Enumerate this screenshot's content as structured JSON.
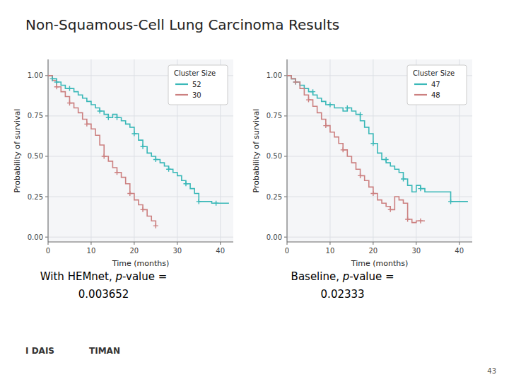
{
  "chart_data": [
    {
      "type": "line",
      "title": "Non-Squamous-Cell Lung Carcinoma Results",
      "x_label": "Time (months)",
      "y_label": "Probability of survival",
      "xlim": [
        0,
        43
      ],
      "ylim": [
        -0.03,
        1.1
      ],
      "xticks": [
        0,
        10,
        20,
        30,
        40
      ],
      "yticks": [
        {
          "value": 0.0,
          "label": "0.00"
        },
        {
          "value": 0.25,
          "label": "0.25"
        },
        {
          "value": 0.5,
          "label": "0.50"
        },
        {
          "value": 0.75,
          "label": "0.75"
        },
        {
          "value": 1.0,
          "label": "1.00"
        }
      ],
      "grid": true,
      "legend": "upper right",
      "legend_title": "Cluster Size",
      "series": [
        {
          "name": "52",
          "type": "line",
          "line_style": "step",
          "color": "#3ab8b8",
          "x": [
            0,
            1,
            2,
            3,
            4,
            5,
            6,
            7,
            8,
            9,
            10,
            11,
            12,
            13,
            14,
            15,
            16,
            17,
            18,
            19,
            20,
            21,
            22,
            23,
            24,
            25,
            26,
            27,
            28,
            29,
            30,
            31,
            32,
            33,
            34,
            35,
            38,
            39,
            40,
            41,
            42
          ],
          "values": [
            1.0,
            0.98,
            0.96,
            0.94,
            0.92,
            0.92,
            0.9,
            0.88,
            0.86,
            0.84,
            0.82,
            0.8,
            0.78,
            0.76,
            0.74,
            0.76,
            0.74,
            0.72,
            0.7,
            0.68,
            0.64,
            0.6,
            0.56,
            0.52,
            0.5,
            0.48,
            0.46,
            0.44,
            0.42,
            0.4,
            0.38,
            0.35,
            0.33,
            0.3,
            0.27,
            0.22,
            0.21,
            0.21,
            0.21,
            0.21,
            0.21
          ]
        },
        {
          "name": "30",
          "type": "line",
          "line_style": "step",
          "color": "#cc8080",
          "x": [
            0,
            1,
            2,
            3,
            4,
            5,
            6,
            7,
            8,
            9,
            10,
            11,
            12,
            13,
            14,
            15,
            16,
            17,
            18,
            19,
            20,
            21,
            22,
            23,
            24,
            25
          ],
          "values": [
            1.0,
            0.97,
            0.93,
            0.9,
            0.87,
            0.83,
            0.8,
            0.77,
            0.73,
            0.7,
            0.67,
            0.63,
            0.57,
            0.5,
            0.47,
            0.43,
            0.4,
            0.37,
            0.33,
            0.27,
            0.23,
            0.2,
            0.17,
            0.13,
            0.1,
            0.07
          ]
        },
        {
          "type": "scatter",
          "marker": "plus",
          "color": "#3ab8b8",
          "x": [
            1,
            2,
            5,
            12,
            14,
            16,
            20,
            22,
            25,
            28,
            32,
            35,
            39
          ],
          "values": [
            0.98,
            0.96,
            0.92,
            0.78,
            0.74,
            0.74,
            0.64,
            0.56,
            0.48,
            0.42,
            0.33,
            0.22,
            0.21
          ]
        },
        {
          "type": "scatter",
          "marker": "plus",
          "color": "#cc8080",
          "x": [
            2,
            5,
            9,
            13,
            16,
            19,
            22,
            25
          ],
          "values": [
            0.93,
            0.83,
            0.7,
            0.5,
            0.4,
            0.27,
            0.17,
            0.07
          ]
        }
      ],
      "annotations": [
        "With HEMnet, ",
        "p",
        "-value =",
        "0.003652"
      ]
    },
    {
      "type": "line",
      "x_label": "Time (months)",
      "y_label": "Probability of survival",
      "xlim": [
        0,
        43
      ],
      "ylim": [
        -0.03,
        1.1
      ],
      "xticks": [
        0,
        10,
        20,
        30,
        40
      ],
      "yticks": [
        {
          "value": 0.0,
          "label": "0.00"
        },
        {
          "value": 0.25,
          "label": "0.25"
        },
        {
          "value": 0.5,
          "label": "0.50"
        },
        {
          "value": 0.75,
          "label": "0.75"
        },
        {
          "value": 1.0,
          "label": "1.00"
        }
      ],
      "grid": true,
      "legend": "upper right",
      "legend_title": "Cluster Size",
      "series": [
        {
          "name": "47",
          "type": "line",
          "line_style": "step",
          "color": "#3ab8b8",
          "x": [
            0,
            1,
            2,
            3,
            4,
            5,
            6,
            7,
            8,
            9,
            10,
            11,
            12,
            13,
            14,
            15,
            16,
            17,
            18,
            19,
            20,
            21,
            22,
            23,
            24,
            25,
            26,
            27,
            28,
            29,
            30,
            31,
            32,
            38,
            39,
            40,
            41,
            42
          ],
          "values": [
            1.0,
            0.98,
            0.96,
            0.94,
            0.92,
            0.9,
            0.88,
            0.86,
            0.84,
            0.82,
            0.82,
            0.8,
            0.8,
            0.78,
            0.8,
            0.78,
            0.76,
            0.72,
            0.68,
            0.64,
            0.58,
            0.52,
            0.48,
            0.46,
            0.44,
            0.42,
            0.4,
            0.36,
            0.32,
            0.28,
            0.32,
            0.3,
            0.28,
            0.22,
            0.22,
            0.22,
            0.22,
            0.22
          ]
        },
        {
          "name": "48",
          "type": "line",
          "line_style": "step",
          "color": "#cc8080",
          "x": [
            0,
            1,
            2,
            3,
            4,
            5,
            6,
            7,
            8,
            9,
            10,
            11,
            12,
            13,
            14,
            15,
            16,
            17,
            18,
            19,
            20,
            21,
            22,
            23,
            24,
            25,
            26,
            27,
            28,
            29,
            30,
            31,
            32
          ],
          "values": [
            1.0,
            0.98,
            0.96,
            0.92,
            0.88,
            0.85,
            0.81,
            0.77,
            0.73,
            0.69,
            0.65,
            0.62,
            0.58,
            0.54,
            0.5,
            0.46,
            0.42,
            0.38,
            0.35,
            0.31,
            0.27,
            0.23,
            0.21,
            0.19,
            0.17,
            0.25,
            0.23,
            0.21,
            0.11,
            0.09,
            0.1,
            0.1,
            0.1
          ]
        },
        {
          "type": "scatter",
          "marker": "plus",
          "color": "#3ab8b8",
          "x": [
            2,
            6,
            10,
            14,
            17,
            20,
            23,
            27,
            31,
            38
          ],
          "values": [
            0.96,
            0.9,
            0.82,
            0.8,
            0.76,
            0.58,
            0.48,
            0.36,
            0.3,
            0.22
          ]
        },
        {
          "type": "scatter",
          "marker": "plus",
          "color": "#cc8080",
          "x": [
            2,
            5,
            9,
            13,
            17,
            20,
            24,
            28,
            31
          ],
          "values": [
            0.96,
            0.85,
            0.69,
            0.54,
            0.38,
            0.27,
            0.17,
            0.11,
            0.1
          ]
        }
      ],
      "annotations": [
        "Baseline, ",
        "p",
        "-value =",
        "0.02333",
        "43",
        "I  DAIS",
        "TIMAN"
      ]
    }
  ]
}
